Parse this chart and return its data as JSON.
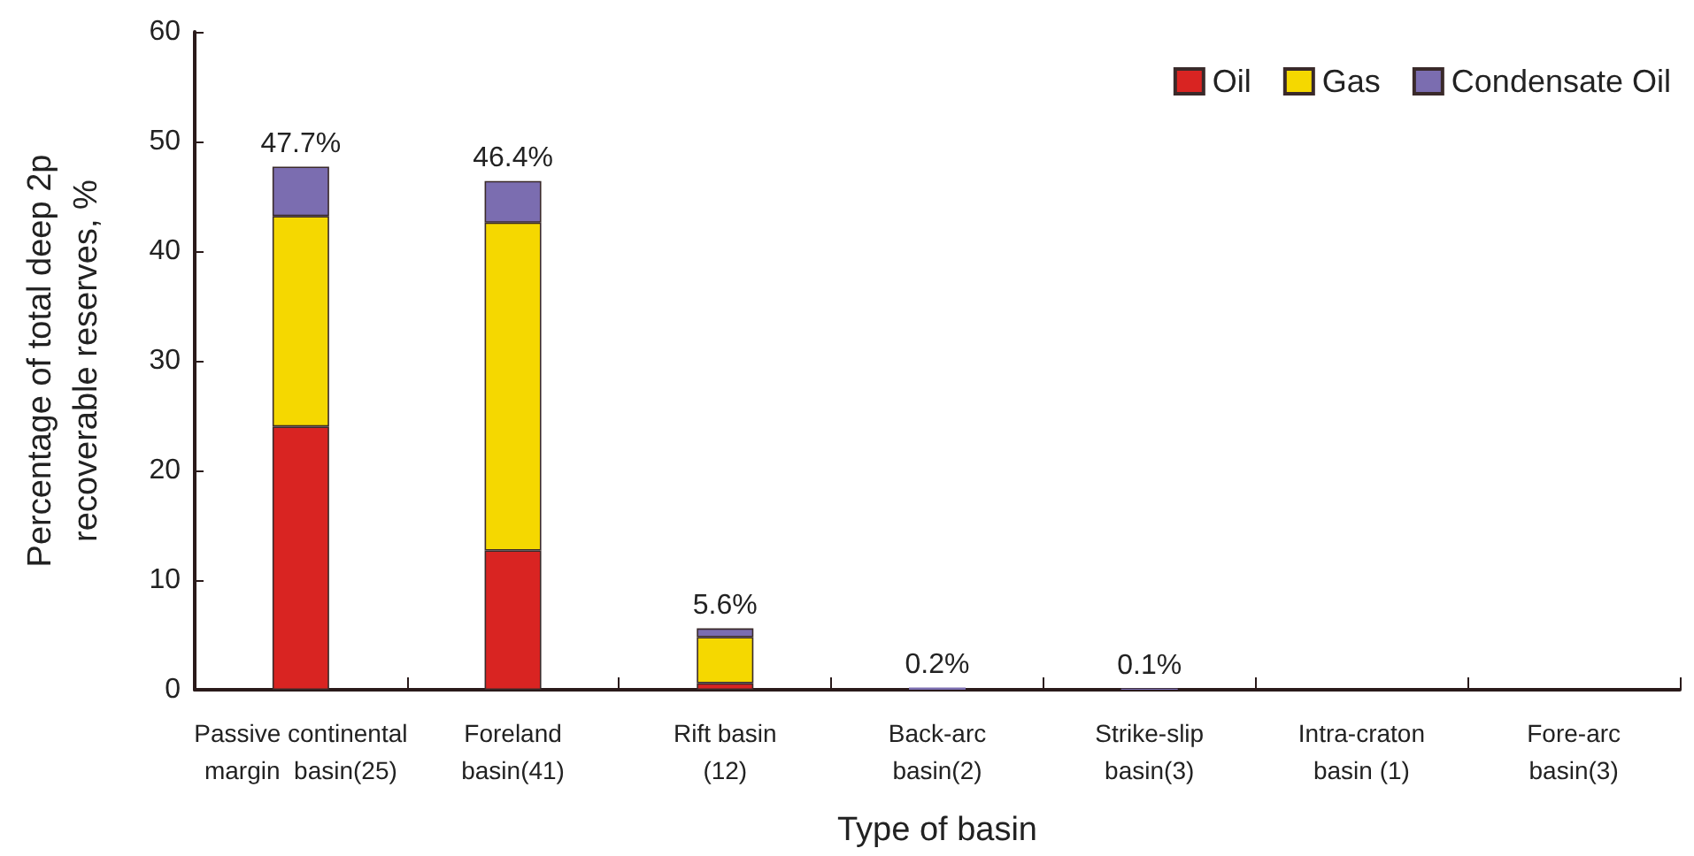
{
  "chart_data": {
    "type": "bar",
    "stacked": true,
    "xlabel": "Type of basin",
    "ylabel": "Percentage of total deep 2p\nrecoverable reserves, %",
    "categories": [
      "Passive continental\nmargin  basin(25)",
      "Foreland\nbasin(41)",
      "Rift basin\n(12)",
      "Back-arc\nbasin(2)",
      "Strike-slip\nbasin(3)",
      "Intra-craton\nbasin (1)",
      "Fore-arc\nbasin(3)"
    ],
    "series": [
      {
        "name": "Oil",
        "color": "#d92422",
        "values": [
          24,
          12.7,
          0.6,
          null,
          null,
          null,
          null
        ]
      },
      {
        "name": "Gas",
        "color": "#f5d800",
        "values": [
          19.2,
          29.9,
          4.2,
          null,
          null,
          null,
          null
        ]
      },
      {
        "name": "Condensate Oil",
        "color": "#7b6db0",
        "values": [
          4.5,
          3.8,
          0.8,
          0.2,
          0.1,
          null,
          null
        ]
      }
    ],
    "totals": [
      "47.7%",
      "46.4%",
      "5.6%",
      "0.2%",
      "0.1%",
      null,
      null
    ],
    "ylim": [
      0,
      60
    ],
    "yticks": [
      0,
      10,
      20,
      30,
      40,
      50,
      60
    ],
    "grid": false,
    "legend": "top right"
  }
}
